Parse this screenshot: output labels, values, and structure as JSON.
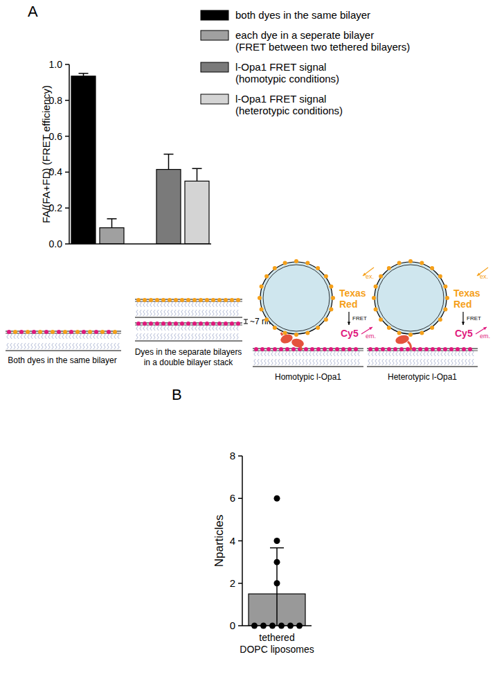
{
  "panels": [
    "A",
    "B"
  ],
  "chart_data": [
    {
      "type": "bar",
      "ylabel": "FA/(FA+FD) (FRET efficiency)",
      "categories": [
        null,
        null,
        null,
        null,
        null
      ],
      "series": [
        {
          "name": "both dyes in the same bilayer",
          "color": "#000000",
          "values": [
            0.935,
            null,
            null,
            null,
            null
          ],
          "errors": [
            0.015,
            null,
            null,
            null,
            null
          ]
        },
        {
          "name": "each dye in a seperate bilayer\n(FRET between two tethered bilayers)",
          "color": "#a0a0a0",
          "values": [
            null,
            0.09,
            null,
            null,
            null
          ],
          "errors": [
            null,
            0.05,
            null,
            null,
            null
          ]
        },
        {
          "name": "l-Opa1 FRET signal\n(homotypic conditions)",
          "color": "#7a7a7a",
          "values": [
            null,
            null,
            null,
            0.415,
            null
          ],
          "errors": [
            null,
            null,
            null,
            0.085,
            null
          ]
        },
        {
          "name": "l-Opa1 FRET signal\n(heterotypic conditions)",
          "color": "#d4d4d4",
          "values": [
            null,
            null,
            null,
            null,
            0.35
          ],
          "errors": [
            null,
            null,
            null,
            null,
            0.07
          ]
        }
      ],
      "ylim": [
        0,
        1
      ],
      "yticks": [
        {
          "value": 0,
          "label": "0.0"
        },
        0.2,
        0.4,
        0.6,
        0.8,
        {
          "value": 1,
          "label": "1.0"
        }
      ],
      "legend": "top-right",
      "tick_labels": "y"
    },
    {
      "type": "bar",
      "ylabel": "Nparticles",
      "categories": [
        "tethered\nDOPC liposomes"
      ],
      "values": [
        1.5
      ],
      "errors": [
        2.17
      ],
      "points": [
        6,
        4,
        3,
        2,
        0,
        0,
        0,
        0,
        0,
        0
      ],
      "color": "#999999",
      "ylim": [
        0,
        8
      ],
      "yticks": [
        0,
        2,
        4,
        6,
        8
      ]
    }
  ],
  "diagram": {
    "schemes": [
      {
        "label": "Both dyes in the same bilayer"
      },
      {
        "label": "Dyes in the separate bilayers\nin a double bilayer stack",
        "spacing": "~7 nm"
      },
      {
        "label": "Homotypic l-Opa1"
      },
      {
        "label": "Heterotypic l-Opa1"
      }
    ],
    "donor": "Texas Red",
    "acceptor": "Cy5",
    "transfer": "FRET",
    "excitation": "ex.",
    "emission": "em."
  }
}
